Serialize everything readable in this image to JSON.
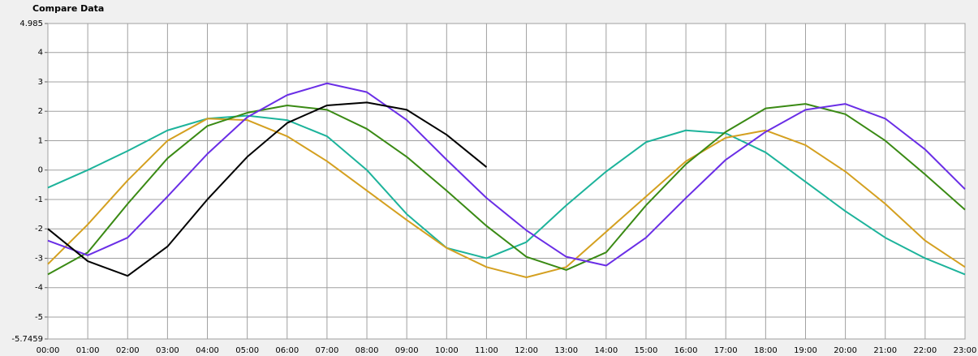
{
  "chart_data": {
    "type": "line",
    "title": "Compare Data",
    "categories": [
      "00:00",
      "01:00",
      "02:00",
      "03:00",
      "04:00",
      "05:00",
      "06:00",
      "07:00",
      "08:00",
      "09:00",
      "10:00",
      "11:00",
      "12:00",
      "13:00",
      "14:00",
      "15:00",
      "16:00",
      "17:00",
      "18:00",
      "19:00",
      "20:00",
      "21:00",
      "22:00",
      "23:00"
    ],
    "series": [
      {
        "color": "#1db39b",
        "values": [
          -0.6,
          0.0,
          0.65,
          1.35,
          1.75,
          1.85,
          1.7,
          1.15,
          0.0,
          -1.5,
          -2.65,
          -3.0,
          -2.45,
          -1.2,
          -0.05,
          0.95,
          1.35,
          1.25,
          0.6,
          -0.4,
          -1.4,
          -2.3,
          -3.0,
          -3.55
        ]
      },
      {
        "color": "#d4a020",
        "values": [
          -3.2,
          -1.85,
          -0.35,
          1.0,
          1.75,
          1.7,
          1.15,
          0.3,
          -0.7,
          -1.7,
          -2.65,
          -3.3,
          -3.65,
          -3.3,
          -2.1,
          -0.9,
          0.3,
          1.1,
          1.35,
          0.85,
          -0.05,
          -1.15,
          -2.4,
          -3.3
        ]
      },
      {
        "color": "#3a8a14",
        "values": [
          -3.55,
          -2.8,
          -1.15,
          0.4,
          1.5,
          1.95,
          2.2,
          2.05,
          1.4,
          0.45,
          -0.7,
          -1.9,
          -2.95,
          -3.4,
          -2.8,
          -1.2,
          0.2,
          1.3,
          2.1,
          2.25,
          1.9,
          1.0,
          -0.15,
          -1.35
        ]
      },
      {
        "color": "#6a2ee6",
        "values": [
          -2.4,
          -2.9,
          -2.3,
          -0.9,
          0.55,
          1.8,
          2.55,
          2.95,
          2.65,
          1.7,
          0.35,
          -0.95,
          -2.05,
          -2.95,
          -3.25,
          -2.3,
          -0.95,
          0.35,
          1.3,
          2.05,
          2.25,
          1.75,
          0.7,
          -0.65
        ]
      },
      {
        "color": "#000000",
        "values": [
          -2.0,
          -3.1,
          -3.6,
          -2.6,
          -1.0,
          0.45,
          1.6,
          2.2,
          2.3,
          2.05,
          1.2,
          0.1,
          null,
          null,
          null,
          null,
          null,
          null,
          null,
          null,
          null,
          null,
          null,
          null
        ]
      }
    ],
    "ylim": [
      -5.7459,
      4.985
    ],
    "yticks": [
      -5.7459,
      -5,
      -4,
      -3,
      -2,
      -1,
      0,
      1,
      2,
      3,
      4,
      4.985
    ],
    "grid": true
  }
}
